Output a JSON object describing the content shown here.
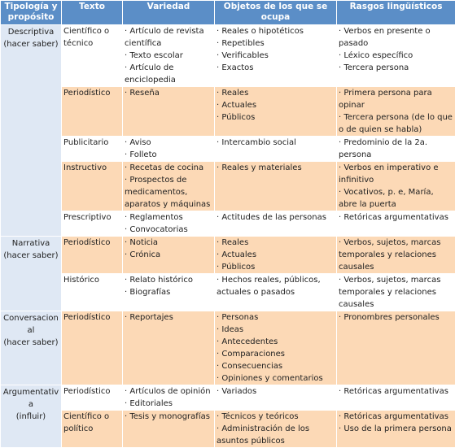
{
  "headers": {
    "tipologia": "Tipología y propósito",
    "texto": "Texto",
    "variedad": "Variedad",
    "objetos": "Objetos de los que se ocupa",
    "rasgos": "Rasgos lingüísticos"
  },
  "groups": [
    {
      "tipologia": [
        "Descriptiva",
        "(hacer saber)"
      ],
      "rows": [
        {
          "texto": [
            "Científico o",
            "técnico"
          ],
          "variedad": [
            "· Artículo de revista científica",
            "· Texto escolar",
            "· Artículo de enciclopedia"
          ],
          "objetos": [
            "· Reales o hipotéticos",
            "· Repetibles",
            "· Verificables",
            "· Exactos"
          ],
          "rasgos": [
            "· Verbos en presente o pasado",
            "· Léxico específico",
            "· Tercera persona"
          ]
        },
        {
          "texto": [
            "Periodístico"
          ],
          "variedad": [
            "· Reseña"
          ],
          "objetos": [
            "· Reales",
            "· Actuales",
            "· Públicos"
          ],
          "rasgos": [
            "· Primera persona para opinar",
            "· Tercera persona (de lo que o de quien se habla)"
          ]
        },
        {
          "texto": [
            "Publicitario"
          ],
          "variedad": [
            "· Aviso",
            "· Folleto"
          ],
          "objetos": [
            "· Intercambio social"
          ],
          "rasgos": [
            "· Predominio de la 2a. persona"
          ]
        },
        {
          "texto": [
            "Instructivo"
          ],
          "variedad": [
            "· Recetas de cocina",
            "· Prospectos de medicamentos, aparatos y máquinas"
          ],
          "objetos": [
            "· Reales y materiales"
          ],
          "rasgos": [
            "· Verbos en imperativo e infinitivo",
            "· Vocativos, p. e, María, abre la puerta"
          ]
        },
        {
          "texto": [
            "Prescriptivo"
          ],
          "variedad": [
            "· Reglamentos",
            "· Convocatorias"
          ],
          "objetos": [
            "· Actitudes de las personas"
          ],
          "rasgos": [
            "· Retóricas argumentativas"
          ]
        }
      ]
    },
    {
      "tipologia": [
        "Narrativa",
        "(hacer saber)"
      ],
      "rows": [
        {
          "texto": [
            "Periodístico"
          ],
          "variedad": [
            "· Noticia",
            "· Crónica"
          ],
          "objetos": [
            "· Reales",
            "· Actuales",
            "· Públicos"
          ],
          "rasgos": [
            "· Verbos, sujetos, marcas temporales y relaciones causales"
          ]
        },
        {
          "texto": [
            "Histórico"
          ],
          "variedad": [
            "· Relato histórico",
            "· Biografías"
          ],
          "objetos": [
            "· Hechos reales, públicos, actuales o pasados"
          ],
          "rasgos": [
            "· Verbos, sujetos, marcas temporales y relaciones causales"
          ]
        }
      ]
    },
    {
      "tipologia": [
        "Conversacional",
        "(hacer saber)"
      ],
      "rows": [
        {
          "texto": [
            "Periodístico"
          ],
          "variedad": [
            "· Reportajes"
          ],
          "objetos": [
            "· Personas",
            "· Ideas",
            "· Antecedentes",
            "· Comparaciones",
            "· Consecuencias",
            "· Opiniones y comentarios"
          ],
          "rasgos": [
            "· Pronombres personales"
          ]
        }
      ]
    },
    {
      "tipologia": [
        "Argumentativa",
        "(influir)"
      ],
      "rows": [
        {
          "texto": [
            "Periodístico"
          ],
          "variedad": [
            "· Artículos de opinión",
            "· Editoriales"
          ],
          "objetos": [
            "· Variados"
          ],
          "rasgos": [
            "· Retóricas argumentativas"
          ]
        },
        {
          "texto": [
            "Científico o",
            "político"
          ],
          "variedad": [
            "· Tesis y monografías"
          ],
          "objetos": [
            "· Técnicos y teóricos",
            "· Administración de los asuntos públicos"
          ],
          "rasgos": [
            "· Retóricas argumentativas",
            "· Uso de la primera persona"
          ]
        }
      ]
    }
  ]
}
